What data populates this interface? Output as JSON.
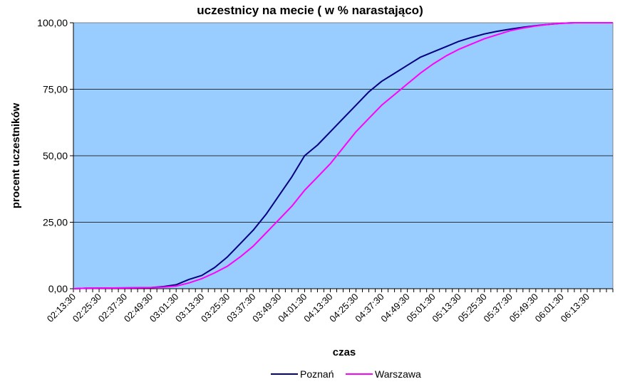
{
  "chart_data": {
    "type": "line",
    "title": "uczestnicy na mecie ( w % narastająco)",
    "xlabel": "czas",
    "ylabel": "procent uczestników",
    "ylim": [
      0,
      100
    ],
    "yticks": [
      "0,00",
      "25,00",
      "50,00",
      "75,00",
      "100,00"
    ],
    "xticks": [
      "02:13:30",
      "02:25:30",
      "02:37:30",
      "02:49:30",
      "03:01:30",
      "03:13:30",
      "03:25:30",
      "03:37:30",
      "03:49:30",
      "04:01:30",
      "04:13:30",
      "04:25:30",
      "04:37:30",
      "04:49:30",
      "05:01:30",
      "05:13:30",
      "05:25:30",
      "05:37:30",
      "05:49:30",
      "06:01:30",
      "06:13:30"
    ],
    "x_range": [
      "02:13:30",
      "06:25:30"
    ],
    "grid": true,
    "plot_background": "#99ccff",
    "legend": {
      "position": "bottom",
      "entries": [
        "Poznań",
        "Warszawa"
      ]
    },
    "series": [
      {
        "name": "Poznań",
        "color": "#000080",
        "points": [
          [
            "02:13:30",
            0
          ],
          [
            "02:19:30",
            0.2
          ],
          [
            "02:37:30",
            0.3
          ],
          [
            "02:49:30",
            0.4
          ],
          [
            "02:55:30",
            0.8
          ],
          [
            "03:01:30",
            1.5
          ],
          [
            "03:07:30",
            3.5
          ],
          [
            "03:13:30",
            5
          ],
          [
            "03:19:30",
            8
          ],
          [
            "03:25:30",
            12
          ],
          [
            "03:31:30",
            17
          ],
          [
            "03:37:30",
            22
          ],
          [
            "03:43:30",
            28
          ],
          [
            "03:49:30",
            35
          ],
          [
            "03:55:30",
            42
          ],
          [
            "04:01:30",
            50
          ],
          [
            "04:07:30",
            54
          ],
          [
            "04:13:30",
            59
          ],
          [
            "04:19:30",
            64
          ],
          [
            "04:25:30",
            69
          ],
          [
            "04:31:30",
            74
          ],
          [
            "04:37:30",
            78
          ],
          [
            "04:43:30",
            81
          ],
          [
            "04:49:30",
            84
          ],
          [
            "04:55:30",
            87
          ],
          [
            "05:01:30",
            89
          ],
          [
            "05:07:30",
            91
          ],
          [
            "05:13:30",
            93
          ],
          [
            "05:19:30",
            94.5
          ],
          [
            "05:25:30",
            95.8
          ],
          [
            "05:31:30",
            96.8
          ],
          [
            "05:37:30",
            97.6
          ],
          [
            "05:43:30",
            98.3
          ],
          [
            "05:49:30",
            98.9
          ],
          [
            "05:55:30",
            99.4
          ],
          [
            "06:01:30",
            99.8
          ],
          [
            "06:07:30",
            100
          ],
          [
            "06:25:30",
            100
          ]
        ]
      },
      {
        "name": "Warszawa",
        "color": "#ff00ff",
        "points": [
          [
            "02:13:30",
            0
          ],
          [
            "02:19:30",
            0.2
          ],
          [
            "02:37:30",
            0.3
          ],
          [
            "02:49:30",
            0.4
          ],
          [
            "02:55:30",
            0.6
          ],
          [
            "03:01:30",
            1
          ],
          [
            "03:07:30",
            2.2
          ],
          [
            "03:13:30",
            3.8
          ],
          [
            "03:19:30",
            6
          ],
          [
            "03:25:30",
            8.5
          ],
          [
            "03:31:30",
            12
          ],
          [
            "03:37:30",
            16
          ],
          [
            "03:43:30",
            21
          ],
          [
            "03:49:30",
            26
          ],
          [
            "03:55:30",
            31
          ],
          [
            "04:01:30",
            37
          ],
          [
            "04:07:30",
            42
          ],
          [
            "04:13:30",
            47
          ],
          [
            "04:19:30",
            53
          ],
          [
            "04:25:30",
            59
          ],
          [
            "04:31:30",
            64
          ],
          [
            "04:37:30",
            69
          ],
          [
            "04:43:30",
            73
          ],
          [
            "04:49:30",
            77
          ],
          [
            "04:55:30",
            81
          ],
          [
            "05:01:30",
            84.5
          ],
          [
            "05:07:30",
            87.5
          ],
          [
            "05:13:30",
            90
          ],
          [
            "05:19:30",
            92
          ],
          [
            "05:25:30",
            94
          ],
          [
            "05:31:30",
            95.5
          ],
          [
            "05:37:30",
            97
          ],
          [
            "05:43:30",
            98
          ],
          [
            "05:49:30",
            98.8
          ],
          [
            "05:55:30",
            99.4
          ],
          [
            "06:01:30",
            99.8
          ],
          [
            "06:07:30",
            100
          ],
          [
            "06:25:30",
            100
          ]
        ]
      }
    ]
  }
}
